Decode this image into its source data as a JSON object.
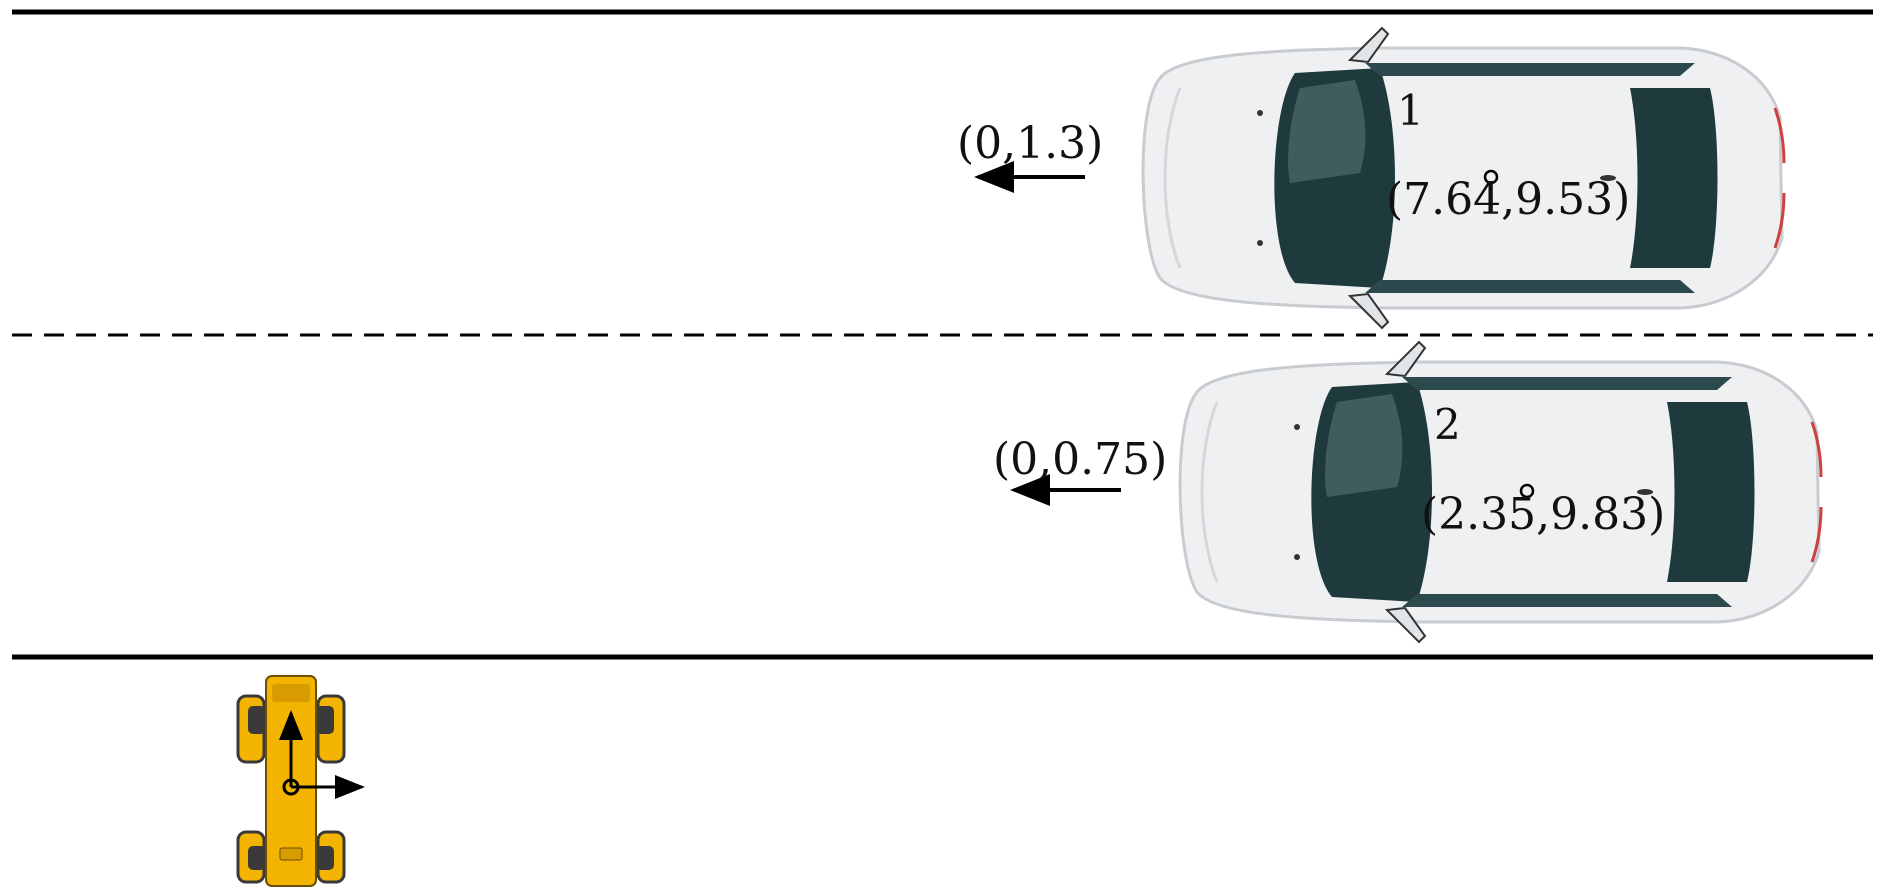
{
  "colors": {
    "road_line": "#000000",
    "car_body": "#eef0f2",
    "car_glass": "#1f3a3d",
    "robot_body": "#f2b400",
    "robot_joint": "#3a3a3a"
  },
  "vehicles": [
    {
      "id": "1",
      "position": "(7.64,9.53)",
      "velocity": "(0,1.3)"
    },
    {
      "id": "2",
      "position": "(2.35,9.83)",
      "velocity": "(0,0.75)"
    }
  ],
  "robot": {
    "icon": "quadruped-robot-icon"
  }
}
